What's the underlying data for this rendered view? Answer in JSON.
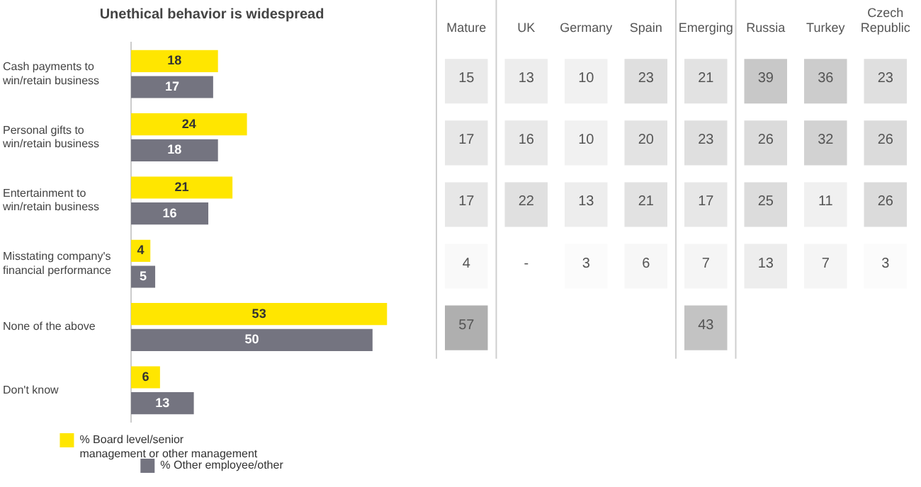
{
  "chart_data": [
    {
      "type": "bar",
      "title": "Unethical behavior is widespread",
      "orientation": "horizontal",
      "categories": [
        "Cash payments to win/retain business",
        "Personal gifts to win/retain business",
        "Entertainment to win/retain business",
        "Misstating company's financial performance",
        "None of the above",
        "Don't know"
      ],
      "series": [
        {
          "name": "% Board level/senior management or other management",
          "color": "#ffe600",
          "values": [
            18,
            24,
            21,
            4,
            53,
            6
          ]
        },
        {
          "name": "% Other employee/other",
          "color": "#747480",
          "values": [
            17,
            18,
            16,
            5,
            50,
            13
          ]
        }
      ],
      "data_labels": true,
      "legend": "bottom",
      "tick_labels": "y"
    },
    {
      "type": "heatmap",
      "categories": [
        "Mature",
        "UK",
        "Germany",
        "Spain",
        "Emerging",
        "Russia",
        "Turkey",
        "Czech Republic"
      ],
      "y_categories": [
        null,
        null,
        null,
        null,
        null
      ],
      "cells": [
        [
          15,
          13,
          10,
          23,
          21,
          39,
          36,
          23
        ],
        [
          17,
          16,
          10,
          20,
          23,
          26,
          32,
          26
        ],
        [
          17,
          22,
          13,
          21,
          17,
          25,
          11,
          26
        ],
        [
          4,
          null,
          3,
          6,
          7,
          13,
          7,
          3
        ],
        [
          57,
          null,
          null,
          null,
          43,
          null,
          null,
          null
        ]
      ],
      "cell_labels": [
        [
          "15",
          "13",
          "10",
          "23",
          "21",
          "39",
          "36",
          "23"
        ],
        [
          "17",
          "16",
          "10",
          "20",
          "23",
          "26",
          "32",
          "26"
        ],
        [
          "17",
          "22",
          "13",
          "21",
          "17",
          "25",
          "11",
          "26"
        ],
        [
          "4",
          "-",
          "3",
          "6",
          "7",
          "13",
          "7",
          "3"
        ],
        [
          "57",
          null,
          null,
          null,
          "43",
          null,
          null,
          null
        ]
      ],
      "tick_labels": "x"
    }
  ]
}
